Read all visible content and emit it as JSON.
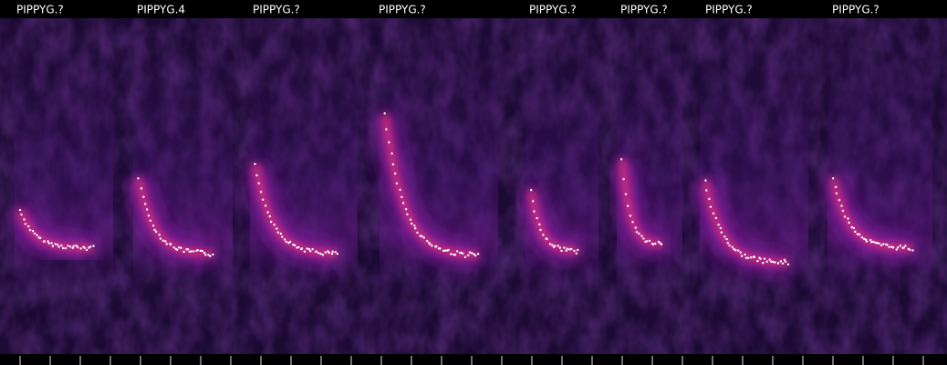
{
  "call_labels": [
    "PIPPYG.?",
    "PIPPYG.4",
    "PIPPYG.?",
    "PIPPYG.?",
    "PIPPYG.?",
    "PIPPYG.?",
    "PIPPYG.?",
    "PIPPYG.?"
  ]
}
